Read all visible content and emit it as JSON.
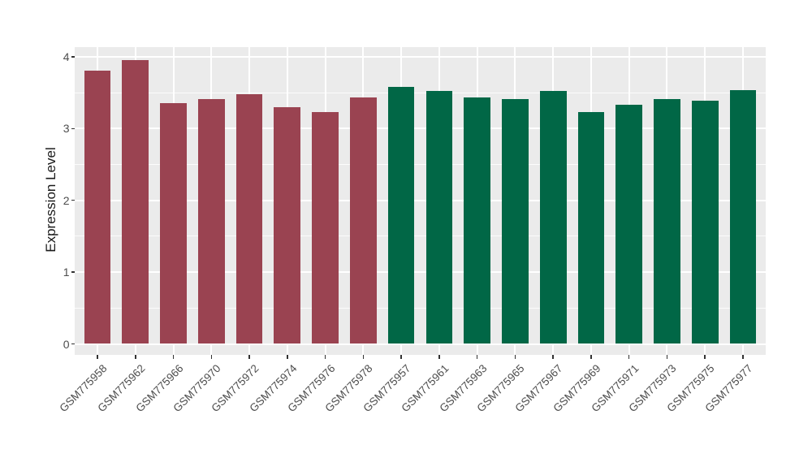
{
  "chart_data": {
    "type": "bar",
    "title": "",
    "xlabel": "",
    "ylabel": "Expression Level",
    "categories": [
      "GSM775958",
      "GSM775962",
      "GSM775966",
      "GSM775970",
      "GSM775972",
      "GSM775974",
      "GSM775976",
      "GSM775978",
      "GSM775957",
      "GSM775961",
      "GSM775963",
      "GSM775965",
      "GSM775967",
      "GSM775969",
      "GSM775971",
      "GSM775973",
      "GSM775975",
      "GSM775977"
    ],
    "values": [
      3.81,
      3.95,
      3.35,
      3.41,
      3.48,
      3.3,
      3.23,
      3.43,
      3.58,
      3.52,
      3.43,
      3.41,
      3.52,
      3.23,
      3.33,
      3.41,
      3.39,
      3.54
    ],
    "bar_colors": [
      "#9A4351",
      "#9A4351",
      "#9A4351",
      "#9A4351",
      "#9A4351",
      "#9A4351",
      "#9A4351",
      "#9A4351",
      "#016746",
      "#016746",
      "#016746",
      "#016746",
      "#016746",
      "#016746",
      "#016746",
      "#016746",
      "#016746",
      "#016746"
    ],
    "yticks": [
      0,
      1,
      2,
      3,
      4
    ],
    "minor_yticks": [
      0.5,
      1.5,
      2.5,
      3.5
    ],
    "ylim": [
      0,
      4.2
    ],
    "x_tick_angle": 45,
    "legend_position": "none",
    "grid": "on",
    "panel_bg": "#EBEBEB",
    "gridline_color": "#FFFFFF",
    "axis_text_color": "#4D4D4D",
    "axis_title_color": "#1A1A1A",
    "tick_mark_color": "#333333",
    "bar_width_fraction": 0.7
  }
}
